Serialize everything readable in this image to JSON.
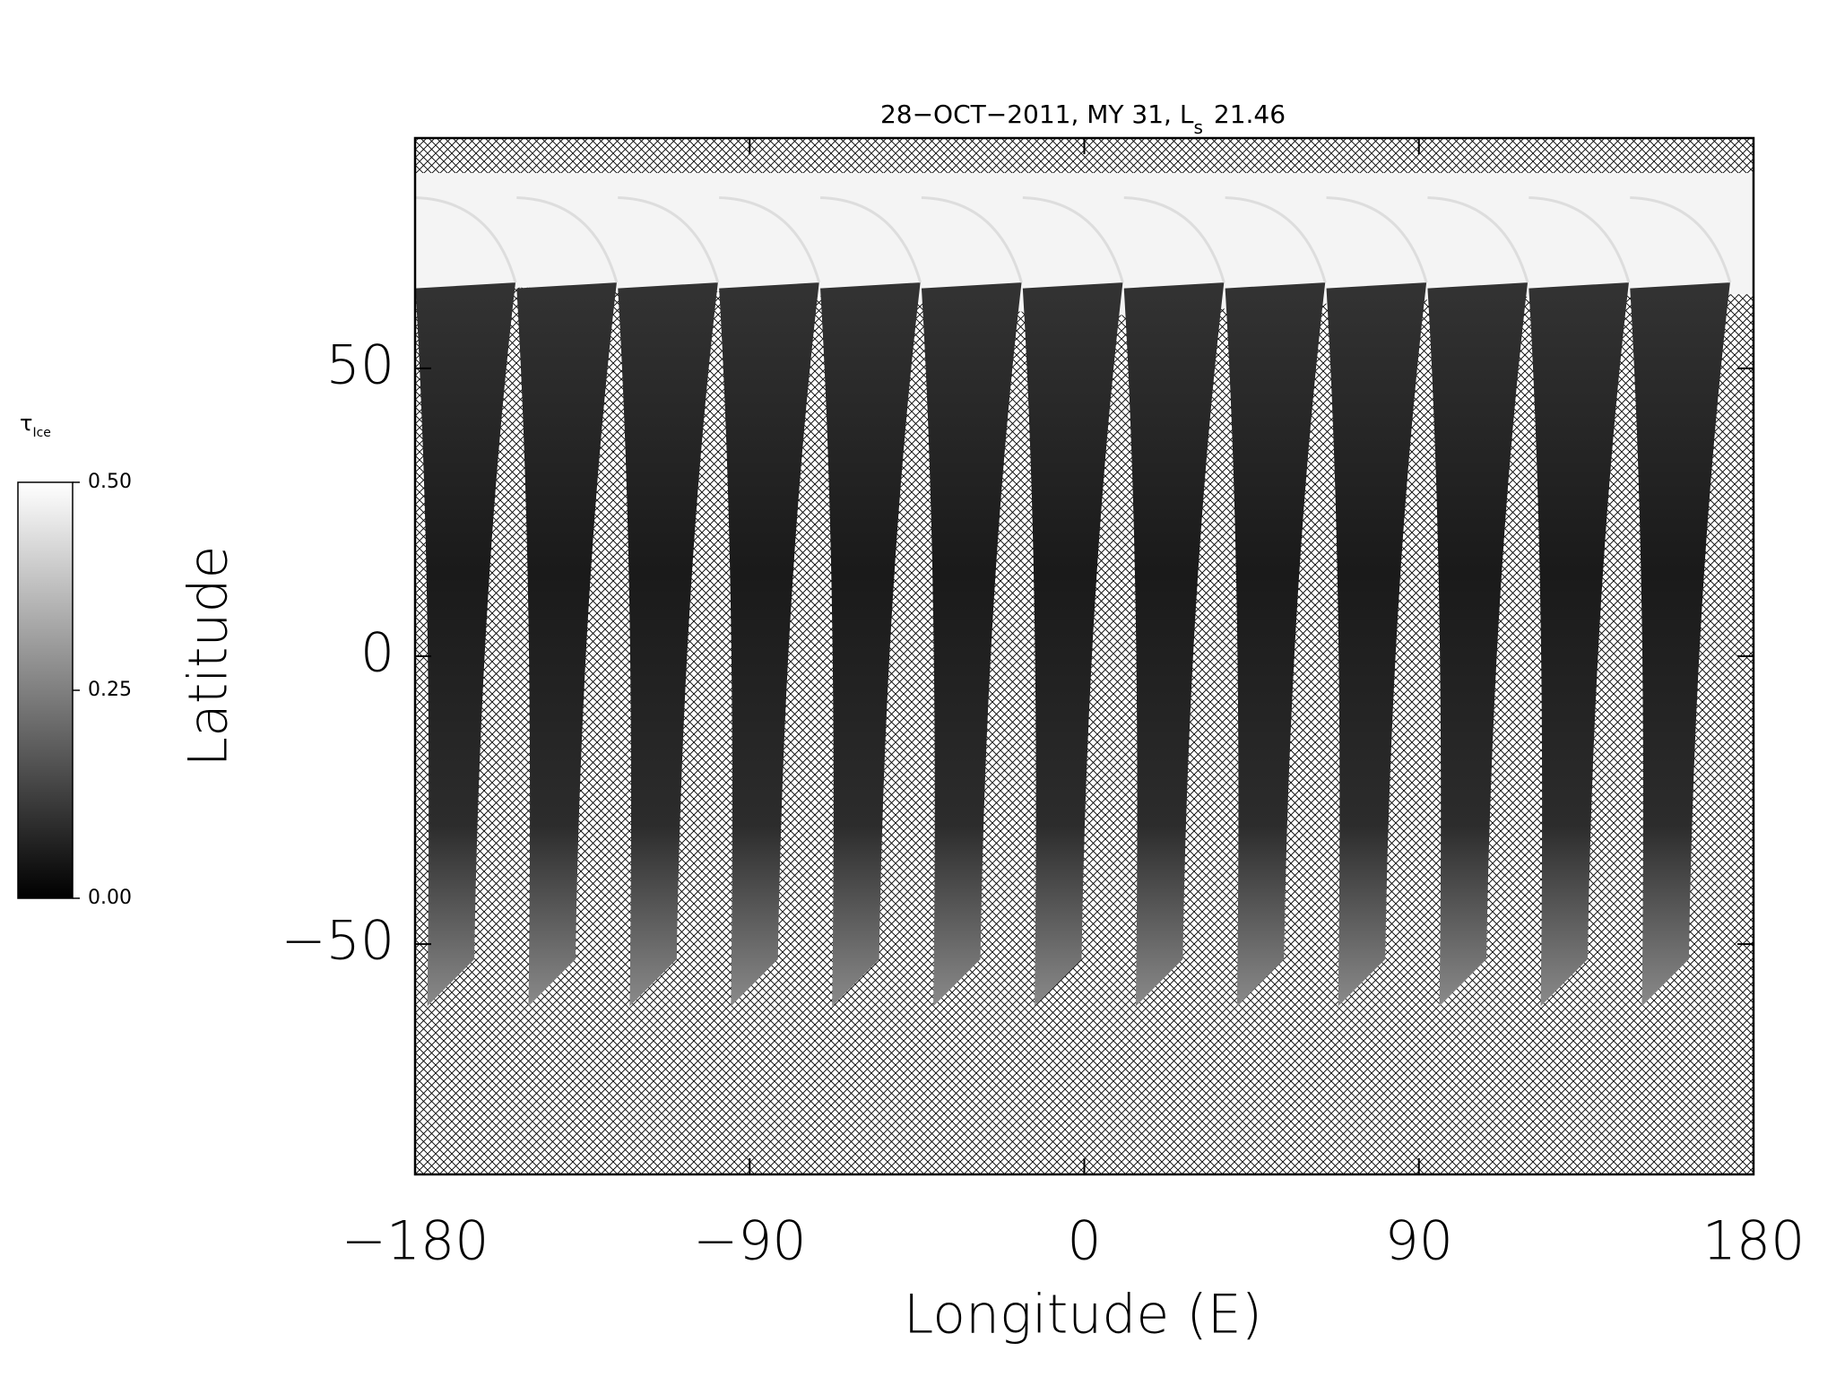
{
  "chart_data": {
    "type": "map",
    "title_parts": [
      "28−OCT−2011, MY 31,  L",
      "s",
      "21.46"
    ],
    "x_label": "Longitude (E)",
    "y_label": "Latitude",
    "xlim": [
      -180,
      180
    ],
    "ylim": [
      -90,
      90
    ],
    "xticks": [
      {
        "value": -180,
        "label": "−180"
      },
      {
        "value": -90,
        "label": "−90"
      },
      0,
      90,
      180
    ],
    "yticks": [
      {
        "value": -50,
        "label": "−50"
      },
      0,
      50
    ],
    "colorbar": {
      "label_parts": [
        "τ",
        "Ice"
      ],
      "clim": [
        0,
        0.5
      ],
      "ticks": [
        {
          "value": 0,
          "label": "0.00"
        },
        {
          "value": 0.25,
          "label": "0.25"
        },
        {
          "value": 0.5,
          "label": "0.50"
        }
      ],
      "colors": [
        "#000000",
        "#ffffff"
      ]
    }
  }
}
